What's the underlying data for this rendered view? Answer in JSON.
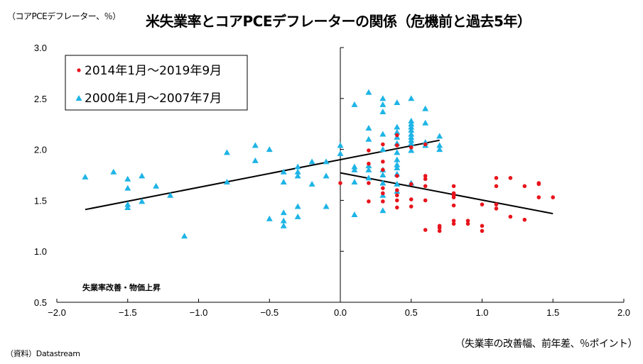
{
  "header": {
    "unit_label": "（コアPCEデフレーター、％）",
    "title": "米失業率とコアPCEデフレーターの関係（危機前と過去5年）"
  },
  "footer": {
    "xlabel": "（失業率の改善幅、前年差、％ポイント）",
    "source": "（資料）Datastream"
  },
  "chart_data": {
    "type": "scatter",
    "title": "米失業率とコアPCEデフレーターの関係（危機前と過去5年）",
    "xlabel": "失業率の改善幅、前年差、％ポイント",
    "ylabel": "コアPCEデフレーター、％",
    "xlim": [
      -2.0,
      2.0
    ],
    "ylim": [
      0.5,
      3.0
    ],
    "xticks": [
      "−2.0",
      "−1.5",
      "−1.0",
      "−0.5",
      "0.0",
      "0.5",
      "1.0",
      "1.5",
      "2.0"
    ],
    "xtick_values": [
      -2.0,
      -1.5,
      -1.0,
      -0.5,
      0.0,
      0.5,
      1.0,
      1.5,
      2.0
    ],
    "yticks": [
      "0.5",
      "1.0",
      "1.5",
      "2.0",
      "2.5",
      "3.0"
    ],
    "ytick_values": [
      0.5,
      1.0,
      1.5,
      2.0,
      2.5,
      3.0
    ],
    "grid": false,
    "legend_position": "top-left",
    "annotation": "失業率改善・物価上昇",
    "series": [
      {
        "name": "2014年1月～2019年9月",
        "marker": "circle",
        "color": "#e8141c",
        "points": [
          [
            0.0,
            1.67
          ],
          [
            0.2,
            1.99
          ],
          [
            0.2,
            1.86
          ],
          [
            0.2,
            1.67
          ],
          [
            0.2,
            1.49
          ],
          [
            0.3,
            2.05
          ],
          [
            0.3,
            1.88
          ],
          [
            0.3,
            1.8
          ],
          [
            0.3,
            1.62
          ],
          [
            0.3,
            1.57
          ],
          [
            0.3,
            1.49
          ],
          [
            0.4,
            2.14
          ],
          [
            0.4,
            2.04
          ],
          [
            0.4,
            1.74
          ],
          [
            0.4,
            1.6
          ],
          [
            0.4,
            1.55
          ],
          [
            0.4,
            1.5
          ],
          [
            0.4,
            1.43
          ],
          [
            0.5,
            2.02
          ],
          [
            0.5,
            1.66
          ],
          [
            0.5,
            1.51
          ],
          [
            0.5,
            1.44
          ],
          [
            0.6,
            2.05
          ],
          [
            0.6,
            1.74
          ],
          [
            0.6,
            1.71
          ],
          [
            0.6,
            1.64
          ],
          [
            0.6,
            1.5
          ],
          [
            0.6,
            1.21
          ],
          [
            0.7,
            1.25
          ],
          [
            0.7,
            1.23
          ],
          [
            0.7,
            1.2
          ],
          [
            0.8,
            1.64
          ],
          [
            0.8,
            1.57
          ],
          [
            0.8,
            1.55
          ],
          [
            0.8,
            1.53
          ],
          [
            0.8,
            1.45
          ],
          [
            0.8,
            1.3
          ],
          [
            0.8,
            1.27
          ],
          [
            0.9,
            1.3
          ],
          [
            0.9,
            1.27
          ],
          [
            1.0,
            1.46
          ],
          [
            1.0,
            1.25
          ],
          [
            1.0,
            1.2
          ],
          [
            1.1,
            1.72
          ],
          [
            1.1,
            1.64
          ],
          [
            1.1,
            1.46
          ],
          [
            1.1,
            1.42
          ],
          [
            1.2,
            1.72
          ],
          [
            1.2,
            1.34
          ],
          [
            1.3,
            1.64
          ],
          [
            1.3,
            1.31
          ],
          [
            1.4,
            1.67
          ],
          [
            1.4,
            1.66
          ],
          [
            1.4,
            1.53
          ],
          [
            1.5,
            1.53
          ]
        ],
        "trendline": {
          "x": [
            0.0,
            1.5
          ],
          "y": [
            1.77,
            1.37
          ]
        }
      },
      {
        "name": "2000年1月～2007年7月",
        "marker": "triangle",
        "color": "#1eb4e6",
        "points": [
          [
            -1.8,
            1.73
          ],
          [
            -1.6,
            1.78
          ],
          [
            -1.5,
            1.71
          ],
          [
            -1.5,
            1.62
          ],
          [
            -1.5,
            1.46
          ],
          [
            -1.5,
            1.43
          ],
          [
            -1.4,
            1.74
          ],
          [
            -1.4,
            1.49
          ],
          [
            -1.3,
            1.64
          ],
          [
            -1.2,
            1.55
          ],
          [
            -1.1,
            1.15
          ],
          [
            -0.8,
            1.97
          ],
          [
            -0.8,
            1.68
          ],
          [
            -0.6,
            2.04
          ],
          [
            -0.6,
            1.89
          ],
          [
            -0.5,
            2.0
          ],
          [
            -0.5,
            1.32
          ],
          [
            -0.4,
            1.78
          ],
          [
            -0.4,
            1.68
          ],
          [
            -0.4,
            1.38
          ],
          [
            -0.4,
            1.3
          ],
          [
            -0.4,
            1.25
          ],
          [
            -0.3,
            1.83
          ],
          [
            -0.3,
            1.78
          ],
          [
            -0.3,
            1.74
          ],
          [
            -0.3,
            1.44
          ],
          [
            -0.3,
            1.34
          ],
          [
            -0.2,
            1.88
          ],
          [
            -0.2,
            1.66
          ],
          [
            -0.1,
            1.88
          ],
          [
            -0.1,
            1.74
          ],
          [
            -0.1,
            1.44
          ],
          [
            0.0,
            2.04
          ],
          [
            0.0,
            1.96
          ],
          [
            0.1,
            2.44
          ],
          [
            0.1,
            1.83
          ],
          [
            0.1,
            1.8
          ],
          [
            0.1,
            1.68
          ],
          [
            0.1,
            1.36
          ],
          [
            0.2,
            2.56
          ],
          [
            0.2,
            2.21
          ],
          [
            0.2,
            2.1
          ],
          [
            0.2,
            1.84
          ],
          [
            0.2,
            1.8
          ],
          [
            0.2,
            1.72
          ],
          [
            0.3,
            2.5
          ],
          [
            0.3,
            2.44
          ],
          [
            0.3,
            2.37
          ],
          [
            0.3,
            2.15
          ],
          [
            0.3,
            2.0
          ],
          [
            0.3,
            1.8
          ],
          [
            0.3,
            1.75
          ],
          [
            0.3,
            1.67
          ],
          [
            0.3,
            1.55
          ],
          [
            0.3,
            1.4
          ],
          [
            0.4,
            2.46
          ],
          [
            0.4,
            2.22
          ],
          [
            0.4,
            2.17
          ],
          [
            0.4,
            2.12
          ],
          [
            0.4,
            2.06
          ],
          [
            0.4,
            1.97
          ],
          [
            0.4,
            1.9
          ],
          [
            0.4,
            1.85
          ],
          [
            0.4,
            1.82
          ],
          [
            0.4,
            1.76
          ],
          [
            0.4,
            1.66
          ],
          [
            0.4,
            1.59
          ],
          [
            0.5,
            2.5
          ],
          [
            0.5,
            2.28
          ],
          [
            0.5,
            2.25
          ],
          [
            0.5,
            2.22
          ],
          [
            0.5,
            2.19
          ],
          [
            0.5,
            2.15
          ],
          [
            0.5,
            2.12
          ],
          [
            0.5,
            2.09
          ],
          [
            0.5,
            2.06
          ],
          [
            0.5,
            1.99
          ],
          [
            0.5,
            1.67
          ],
          [
            0.6,
            2.4
          ],
          [
            0.6,
            2.26
          ],
          [
            0.6,
            2.07
          ],
          [
            0.6,
            2.04
          ],
          [
            0.7,
            2.13
          ],
          [
            0.7,
            2.04
          ],
          [
            0.7,
            2.0
          ]
        ],
        "trendline": {
          "x": [
            -1.8,
            0.7
          ],
          "y": [
            1.41,
            2.09
          ]
        }
      }
    ]
  }
}
